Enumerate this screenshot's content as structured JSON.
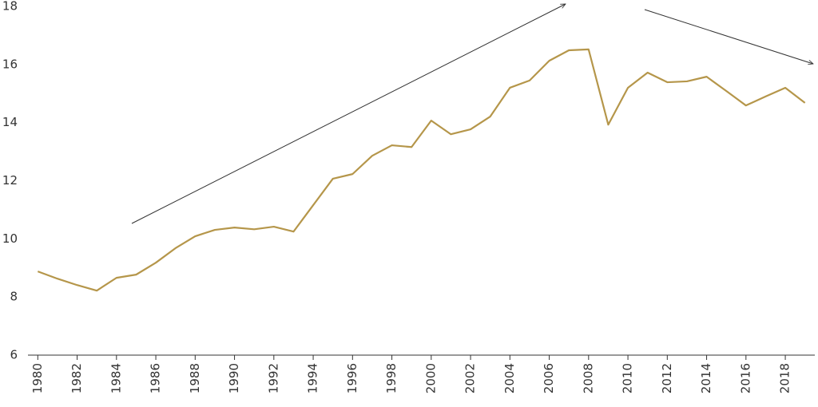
{
  "chart_data": {
    "type": "line",
    "x": [
      1980,
      1981,
      1982,
      1983,
      1984,
      1985,
      1986,
      1987,
      1988,
      1989,
      1990,
      1991,
      1992,
      1993,
      1994,
      1995,
      1996,
      1997,
      1998,
      1999,
      2000,
      2001,
      2002,
      2003,
      2004,
      2005,
      2006,
      2007,
      2008,
      2009,
      2010,
      2011,
      2012,
      2013,
      2014,
      2015,
      2016,
      2017,
      2018,
      2019
    ],
    "series": [
      {
        "color": "#b5964a",
        "values": [
          8.88,
          8.63,
          8.41,
          8.22,
          8.66,
          8.77,
          9.18,
          9.68,
          10.09,
          10.31,
          10.39,
          10.33,
          10.42,
          10.25,
          11.16,
          12.07,
          12.23,
          12.86,
          13.22,
          13.16,
          14.07,
          13.6,
          13.77,
          14.21,
          15.2,
          15.45,
          16.13,
          16.49,
          16.52,
          13.93,
          15.2,
          15.72,
          15.39,
          15.42,
          15.58,
          15.09,
          14.59,
          14.9,
          15.2,
          14.68
        ]
      }
    ],
    "xlim": [
      1979.5,
      2019.5
    ],
    "xticks": [
      1980,
      1982,
      1984,
      1986,
      1988,
      1990,
      1992,
      1994,
      1996,
      1998,
      2000,
      2002,
      2004,
      2006,
      2008,
      2010,
      2012,
      2014,
      2016,
      2018
    ],
    "ylim": [
      6,
      18
    ],
    "yticks": [
      6,
      8,
      10,
      12,
      14,
      16,
      18
    ]
  }
}
